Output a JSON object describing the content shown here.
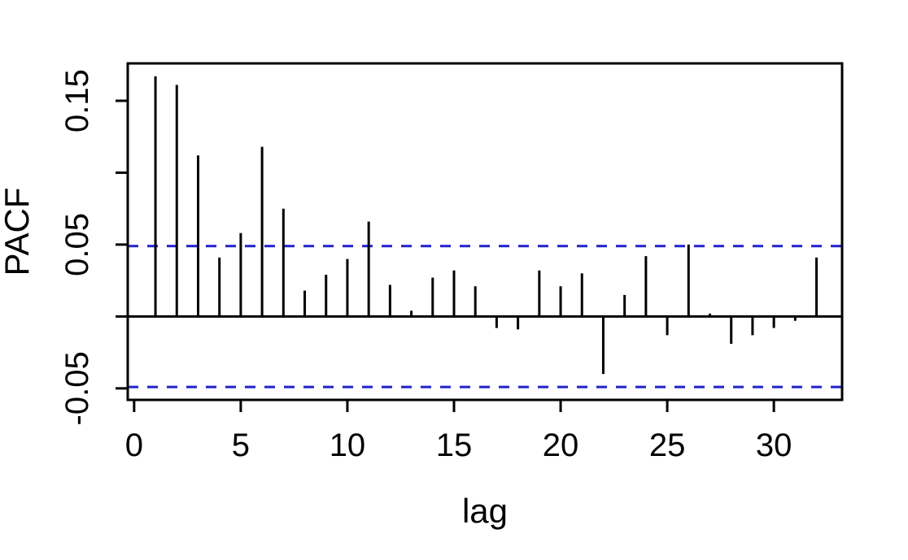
{
  "figure": {
    "background_color": "#ffffff",
    "foreground_color": "#000000"
  },
  "chart_data": {
    "type": "bar",
    "subtype": "pacf-stick-plot",
    "title": "",
    "xlabel": "lag",
    "ylabel": "PACF",
    "x": [
      1,
      2,
      3,
      4,
      5,
      6,
      7,
      8,
      9,
      10,
      11,
      12,
      13,
      14,
      15,
      16,
      17,
      18,
      19,
      20,
      21,
      22,
      23,
      24,
      25,
      26,
      27,
      28,
      29,
      30,
      31,
      32
    ],
    "values": [
      0.167,
      0.161,
      0.112,
      0.041,
      0.058,
      0.118,
      0.075,
      0.018,
      0.029,
      0.04,
      0.066,
      0.022,
      0.004,
      0.027,
      0.032,
      0.021,
      -0.008,
      -0.009,
      0.032,
      0.021,
      0.03,
      -0.04,
      0.015,
      0.042,
      -0.013,
      0.05,
      0.002,
      -0.019,
      -0.013,
      -0.008,
      -0.003,
      0.041
    ],
    "bar_color": "#000000",
    "confidence_bounds": {
      "upper": 0.049,
      "lower": -0.049,
      "line_style": "dashed",
      "color": "#2222cc"
    },
    "zero_line": true,
    "grid": false,
    "legend": null,
    "axis": {
      "xlim": [
        -0.3,
        33.2
      ],
      "ylim": [
        -0.058,
        0.176
      ],
      "x_ticks": [
        0,
        5,
        10,
        15,
        20,
        25,
        30
      ],
      "x_tick_labels": [
        "0",
        "5",
        "10",
        "15",
        "20",
        "25",
        "30"
      ],
      "y_ticks": [
        0.15,
        0.1,
        0.05,
        0.0,
        -0.05
      ],
      "y_tick_labels": [
        "0.15",
        "",
        "0.05",
        "",
        "-0.05"
      ]
    }
  }
}
